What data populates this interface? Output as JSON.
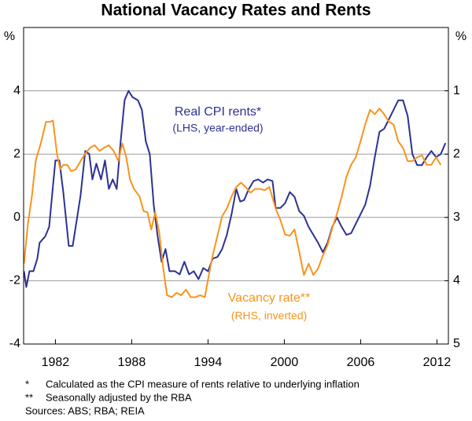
{
  "chart_data": {
    "type": "line",
    "title": "National Vacancy Rates and Rents",
    "ylabel": "%",
    "y2label": "%",
    "xlim": [
      1979.5,
      2012.9
    ],
    "xticks": [
      1982,
      1988,
      1994,
      2000,
      2006,
      2012
    ],
    "ylim": [
      -4,
      6
    ],
    "yticks": [
      -4,
      -2,
      0,
      2,
      4
    ],
    "y2lim": [
      5,
      0
    ],
    "y2ticks": [
      1,
      2,
      3,
      4,
      5
    ],
    "grid": true,
    "series": [
      {
        "name": "Real CPI rents*",
        "color": "#2e3192",
        "axis": "y",
        "x": [
          1979.53,
          1979.71,
          1979.96,
          1980.27,
          1980.58,
          1980.76,
          1981.2,
          1981.51,
          1981.81,
          1982.0,
          1982.31,
          1982.62,
          1983.05,
          1983.36,
          1983.73,
          1983.98,
          1984.35,
          1984.66,
          1984.91,
          1985.22,
          1985.59,
          1985.9,
          1986.2,
          1986.51,
          1986.82,
          1987.13,
          1987.44,
          1987.75,
          1988.06,
          1988.49,
          1988.8,
          1989.11,
          1989.42,
          1989.73,
          1990.04,
          1990.35,
          1990.66,
          1990.97,
          1991.4,
          1991.77,
          1992.14,
          1992.51,
          1992.88,
          1993.25,
          1993.63,
          1994.0,
          1994.37,
          1994.74,
          1995.11,
          1995.48,
          1995.85,
          1996.22,
          1996.53,
          1996.84,
          1997.21,
          1997.58,
          1997.95,
          1998.32,
          1998.69,
          1999.07,
          1999.32,
          1999.69,
          2000.06,
          2000.43,
          2000.8,
          2001.17,
          2001.54,
          2001.91,
          2002.28,
          2002.65,
          2003.03,
          2003.4,
          2003.77,
          2004.14,
          2004.51,
          2004.88,
          2005.25,
          2005.62,
          2005.99,
          2006.36,
          2006.74,
          2007.11,
          2007.48,
          2007.85,
          2008.22,
          2008.59,
          2008.96,
          2009.33,
          2009.7,
          2010.07,
          2010.45,
          2010.82,
          2011.19,
          2011.56,
          2011.93,
          2012.3,
          2012.67
        ],
        "values": [
          -1.7,
          -2.2,
          -1.7,
          -1.7,
          -1.3,
          -0.8,
          -0.6,
          -0.3,
          1.0,
          1.8,
          1.8,
          0.8,
          -0.9,
          -0.9,
          0.05,
          0.7,
          2.1,
          2.0,
          1.2,
          1.7,
          1.2,
          1.8,
          0.9,
          1.2,
          0.9,
          2.4,
          3.7,
          4.0,
          3.8,
          3.7,
          3.4,
          2.4,
          2.0,
          0.4,
          -0.6,
          -1.4,
          -1.0,
          -1.7,
          -1.7,
          -1.8,
          -1.4,
          -1.8,
          -1.7,
          -1.95,
          -1.6,
          -1.7,
          -1.3,
          -1.25,
          -1.0,
          -0.55,
          0.1,
          0.9,
          0.5,
          0.55,
          0.9,
          1.15,
          1.2,
          1.1,
          1.2,
          1.15,
          0.3,
          0.3,
          0.45,
          0.8,
          0.65,
          0.2,
          0.05,
          -0.3,
          -0.55,
          -0.8,
          -1.1,
          -0.8,
          -0.3,
          0.0,
          -0.3,
          -0.55,
          -0.5,
          -0.2,
          0.1,
          0.4,
          1.0,
          1.9,
          2.7,
          2.8,
          3.1,
          3.4,
          3.7,
          3.7,
          3.2,
          2.0,
          1.65,
          1.65,
          1.9,
          2.1,
          1.9,
          2.0,
          2.35
        ]
      },
      {
        "name": "Vacancy rate**",
        "color": "#f7941d",
        "axis": "y2",
        "x": [
          1979.53,
          1979.84,
          1980.15,
          1980.45,
          1980.89,
          1981.26,
          1981.57,
          1981.81,
          1982.12,
          1982.37,
          1982.62,
          1982.93,
          1983.24,
          1983.61,
          1983.98,
          1984.35,
          1984.72,
          1985.09,
          1985.46,
          1985.83,
          1986.2,
          1986.58,
          1986.95,
          1987.26,
          1987.57,
          1987.87,
          1988.18,
          1988.62,
          1988.93,
          1989.24,
          1989.54,
          1989.85,
          1990.16,
          1990.47,
          1990.78,
          1991.15,
          1991.52,
          1991.89,
          1992.27,
          1992.64,
          1993.01,
          1993.38,
          1993.75,
          1994.12,
          1994.37,
          1994.74,
          1995.11,
          1995.48,
          1995.85,
          1996.22,
          1996.59,
          1996.96,
          1997.34,
          1997.71,
          1998.08,
          1998.45,
          1998.82,
          1999.32,
          1999.69,
          2000.06,
          2000.43,
          2000.8,
          2001.17,
          2001.54,
          2001.91,
          2002.28,
          2002.65,
          2003.03,
          2003.4,
          2003.77,
          2004.14,
          2004.51,
          2004.88,
          2005.25,
          2005.62,
          2005.99,
          2006.36,
          2006.74,
          2007.11,
          2007.48,
          2007.85,
          2008.22,
          2008.59,
          2008.96,
          2009.33,
          2009.7,
          2010.07,
          2010.45,
          2010.82,
          2011.19,
          2011.56,
          2011.93,
          2012.3
        ],
        "values": [
          3.73,
          3.1,
          2.67,
          2.11,
          1.8,
          1.49,
          1.49,
          1.47,
          1.99,
          2.24,
          2.17,
          2.17,
          2.27,
          2.24,
          2.11,
          1.99,
          1.9,
          1.86,
          1.95,
          1.9,
          1.86,
          1.95,
          2.11,
          1.83,
          2.05,
          2.4,
          2.55,
          2.67,
          2.9,
          2.92,
          3.19,
          2.92,
          3.23,
          3.79,
          4.23,
          4.26,
          4.19,
          4.23,
          4.14,
          4.26,
          4.26,
          4.23,
          4.26,
          3.85,
          3.6,
          3.29,
          2.98,
          2.86,
          2.67,
          2.52,
          2.45,
          2.52,
          2.61,
          2.55,
          2.55,
          2.57,
          2.52,
          2.86,
          3.04,
          3.27,
          3.29,
          3.19,
          3.54,
          3.91,
          3.73,
          3.91,
          3.81,
          3.6,
          3.44,
          3.17,
          2.94,
          2.67,
          2.36,
          2.17,
          2.05,
          1.8,
          1.53,
          1.3,
          1.37,
          1.28,
          1.37,
          1.49,
          1.53,
          1.8,
          1.9,
          2.11,
          2.11,
          2.05,
          2.02,
          2.17,
          2.17,
          2.05,
          2.17
        ]
      }
    ],
    "annotations": [
      "(LHS, year-ended)",
      "(RHS, inverted)"
    ],
    "footnotes": [
      {
        "marker": "*",
        "text": "Calculated as the CPI measure of rents relative to underlying inflation"
      },
      {
        "marker": "**",
        "text": "Seasonally adjusted by the RBA"
      }
    ],
    "sources": "Sources: ABS; RBA; REIA"
  }
}
